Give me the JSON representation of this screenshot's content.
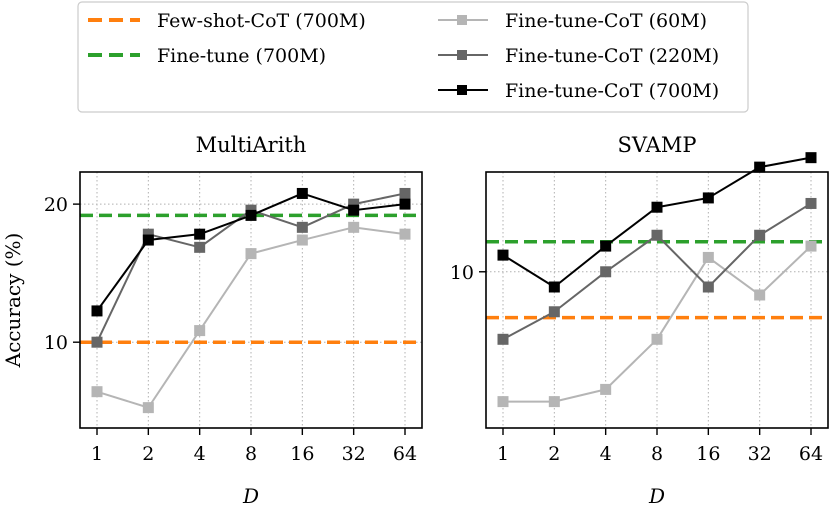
{
  "chart_data": [
    {
      "type": "line",
      "title": "MultiArith",
      "xlabel": "D",
      "ylabel": "Accuracy (%)",
      "x": [
        1,
        2,
        4,
        8,
        16,
        32,
        64
      ],
      "xticklabels": [
        "1",
        "2",
        "4",
        "8",
        "16",
        "32",
        "64"
      ],
      "yscale": "log",
      "yticks": [
        10,
        20
      ],
      "yticklabels": [
        "10",
        "20"
      ],
      "ylim": [
        6.5,
        23.5
      ],
      "grid": true,
      "series": [
        {
          "name": "Fine-tune-CoT (60M)",
          "color": "#b5b5b5",
          "values": [
            7.8,
            7.2,
            10.6,
            15.6,
            16.7,
            17.8,
            17.2
          ]
        },
        {
          "name": "Fine-tune-CoT (220M)",
          "color": "#666666",
          "values": [
            10.0,
            17.2,
            16.1,
            19.4,
            17.8,
            20.0,
            21.1
          ]
        },
        {
          "name": "Fine-tune-CoT (700M)",
          "color": "#000000",
          "values": [
            11.7,
            16.7,
            17.2,
            18.9,
            21.1,
            19.4,
            20.0
          ]
        }
      ],
      "baselines": [
        {
          "name": "Few-shot-CoT (700M)",
          "color": "#ff7f0e",
          "value": 10.0
        },
        {
          "name": "Fine-tune (700M)",
          "color": "#2ca02c",
          "value": 18.9
        }
      ]
    },
    {
      "type": "line",
      "title": "SVAMP",
      "xlabel": "D",
      "ylabel": "",
      "x": [
        1,
        2,
        4,
        8,
        16,
        32,
        64
      ],
      "xticklabels": [
        "1",
        "2",
        "4",
        "8",
        "16",
        "32",
        "64"
      ],
      "yscale": "log",
      "yticks": [
        10
      ],
      "yticklabels": [
        "10"
      ],
      "ylim": [
        5.3,
        15.0
      ],
      "grid": true,
      "series": [
        {
          "name": "Fine-tune-CoT (60M)",
          "color": "#b5b5b5",
          "values": [
            5.9,
            5.9,
            6.2,
            7.6,
            10.6,
            9.1,
            11.1
          ]
        },
        {
          "name": "Fine-tune-CoT (220M)",
          "color": "#666666",
          "values": [
            7.6,
            8.5,
            10.0,
            11.6,
            9.4,
            11.6,
            13.2
          ]
        },
        {
          "name": "Fine-tune-CoT (700M)",
          "color": "#000000",
          "values": [
            10.7,
            9.4,
            11.1,
            13.0,
            13.5,
            15.3,
            15.9
          ]
        }
      ],
      "baselines": [
        {
          "name": "Few-shot-CoT (700M)",
          "color": "#ff7f0e",
          "value": 8.3
        },
        {
          "name": "Fine-tune (700M)",
          "color": "#2ca02c",
          "value": 11.3
        }
      ]
    }
  ],
  "legend": {
    "placement": "top-center",
    "entries": [
      {
        "label": "Few-shot-CoT (700M)",
        "color": "#ff7f0e",
        "style": "dashed"
      },
      {
        "label": "Fine-tune (700M)",
        "color": "#2ca02c",
        "style": "dashed"
      },
      {
        "label": "Fine-tune-CoT (60M)",
        "color": "#b5b5b5",
        "style": "line-square"
      },
      {
        "label": "Fine-tune-CoT (220M)",
        "color": "#666666",
        "style": "line-square"
      },
      {
        "label": "Fine-tune-CoT (700M)",
        "color": "#000000",
        "style": "line-square"
      }
    ]
  }
}
